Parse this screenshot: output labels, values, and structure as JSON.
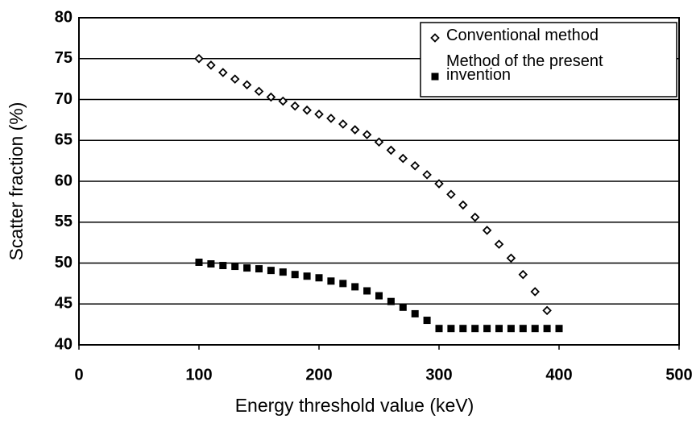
{
  "chart_data": {
    "type": "scatter",
    "xlabel": "Energy threshold value (keV)",
    "ylabel": "Scatter fraction (%)",
    "xlim": [
      0,
      500
    ],
    "xticks": [
      0,
      100,
      200,
      300,
      400,
      500
    ],
    "ylim": [
      40,
      80
    ],
    "yticks": [
      40,
      45,
      50,
      55,
      60,
      65,
      70,
      75,
      80
    ],
    "grid": true,
    "legend": "upper right",
    "series": [
      {
        "name": "Conventional method",
        "color": "#000000",
        "marker": "diamond-open",
        "x": [
          100,
          110,
          120,
          130,
          140,
          150,
          160,
          170,
          180,
          190,
          200,
          210,
          220,
          230,
          240,
          250,
          260,
          270,
          280,
          290,
          300,
          310,
          320,
          330,
          340,
          350,
          360,
          370,
          380,
          390
        ],
        "values": [
          75.0,
          74.2,
          73.3,
          72.5,
          71.8,
          71.0,
          70.3,
          69.8,
          69.2,
          68.7,
          68.2,
          67.7,
          67.0,
          66.3,
          65.7,
          64.8,
          63.8,
          62.8,
          61.9,
          60.8,
          59.7,
          58.4,
          57.1,
          55.6,
          54.0,
          52.3,
          50.6,
          48.6,
          46.5,
          44.2
        ]
      },
      {
        "name": "Method of the present invention",
        "color": "#000000",
        "marker": "square",
        "x": [
          100,
          110,
          120,
          130,
          140,
          150,
          160,
          170,
          180,
          190,
          200,
          210,
          220,
          230,
          240,
          250,
          260,
          270,
          280,
          290,
          300,
          310,
          320,
          330,
          340,
          350,
          360,
          370,
          380,
          390,
          400
        ],
        "values": [
          50.1,
          49.9,
          49.7,
          49.6,
          49.4,
          49.3,
          49.1,
          48.9,
          48.6,
          48.4,
          48.2,
          47.8,
          47.5,
          47.1,
          46.6,
          46.0,
          45.3,
          44.6,
          43.8,
          43.0,
          42.0,
          42.0,
          42.0,
          42.0,
          42.0,
          42.0,
          42.0,
          42.0,
          42.0,
          42.0,
          42.0
        ]
      }
    ]
  }
}
